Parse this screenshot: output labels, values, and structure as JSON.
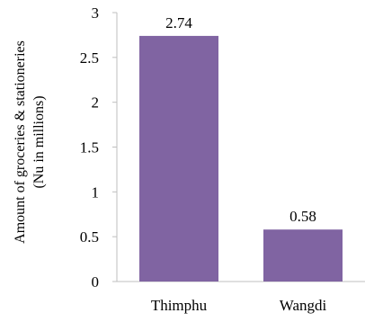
{
  "chart_data": {
    "type": "bar",
    "categories": [
      "Thimphu",
      "Wangdi"
    ],
    "values": [
      2.74,
      0.58
    ],
    "data_labels": [
      "2.74",
      "0.58"
    ],
    "ylabel_line1": "Amount of groceries & stationeries",
    "ylabel_line2": "(Nu in millions)",
    "xlabel": "",
    "ylim": [
      0,
      3
    ],
    "yticks": [
      "0",
      "0.5",
      "1",
      "1.5",
      "2",
      "2.5",
      "3"
    ],
    "grid": false,
    "bar_color": "#8064a2"
  }
}
